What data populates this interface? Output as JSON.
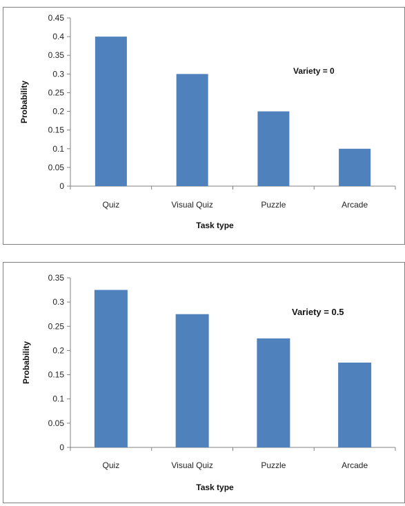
{
  "colors": {
    "bar": "#4f81bd",
    "axis": "#808080",
    "text": "#222222"
  },
  "chart_data": [
    {
      "type": "bar",
      "categories": [
        "Quiz",
        "Visual Quiz",
        "Puzzle",
        "Arcade"
      ],
      "values": [
        0.4,
        0.3,
        0.2,
        0.1
      ],
      "yticks": [
        "0",
        "0.05",
        "0.1",
        "0.15",
        "0.2",
        "0.25",
        "0.3",
        "0.35",
        "0.4",
        "0.45"
      ],
      "ylim": [
        0,
        0.45
      ],
      "xlabel": "Task type",
      "ylabel": "Probability",
      "annotation": "Variety = 0",
      "grid": false,
      "legend": "none"
    },
    {
      "type": "bar",
      "categories": [
        "Quiz",
        "Visual Quiz",
        "Puzzle",
        "Arcade"
      ],
      "values": [
        0.325,
        0.275,
        0.225,
        0.175
      ],
      "yticks": [
        "0",
        "0.05",
        "0.1",
        "0.15",
        "0.2",
        "0.25",
        "0.3",
        "0.35"
      ],
      "ylim": [
        0,
        0.35
      ],
      "xlabel": "Task type",
      "ylabel": "Probability",
      "annotation": "Variety = 0.5",
      "grid": false,
      "legend": "none"
    }
  ]
}
